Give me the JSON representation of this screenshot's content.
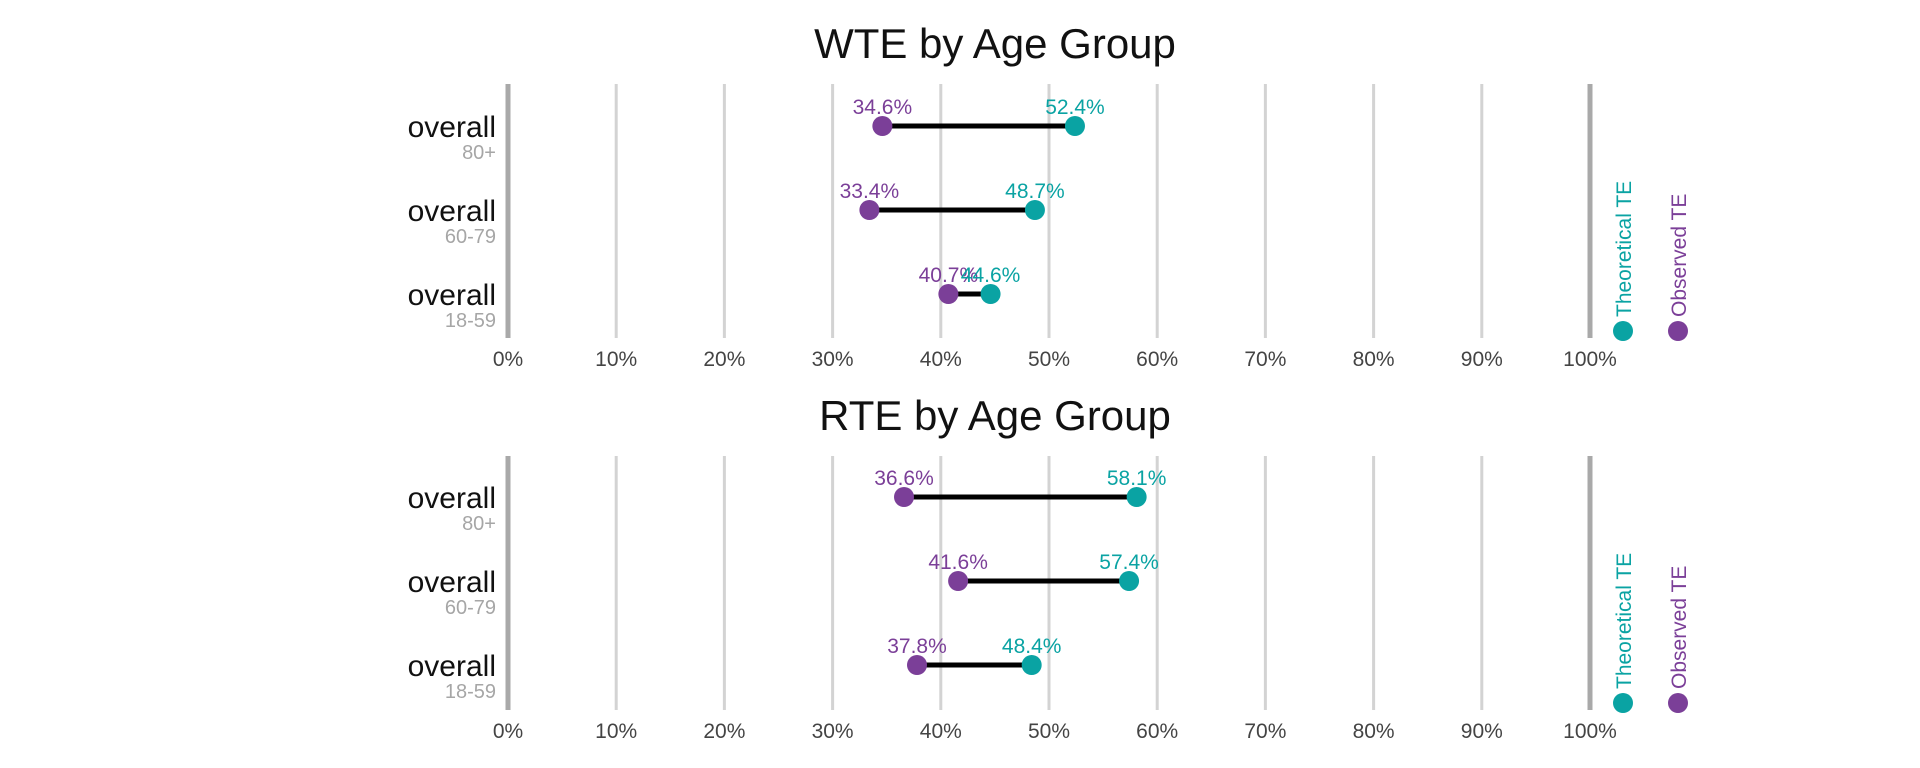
{
  "colors": {
    "observed": "#7B3F98",
    "theoretical": "#0AA3A3",
    "grid": "#d3d3d3",
    "axis": "#a9a9a9",
    "subtitle": "#a6a6a6"
  },
  "chart_data": [
    {
      "type": "dumbbell",
      "title": "WTE by Age Group",
      "x_ticks": [
        "0%",
        "10%",
        "20%",
        "30%",
        "40%",
        "50%",
        "60%",
        "70%",
        "80%",
        "90%",
        "100%"
      ],
      "xlim": [
        0,
        100
      ],
      "grid": true,
      "rows": [
        {
          "category": "overall",
          "sub": "80+",
          "observed": 34.6,
          "observed_label": "34.6%",
          "theoretical": 52.4,
          "theoretical_label": "52.4%"
        },
        {
          "category": "overall",
          "sub": "60-79",
          "observed": 33.4,
          "observed_label": "33.4%",
          "theoretical": 48.7,
          "theoretical_label": "48.7%"
        },
        {
          "category": "overall",
          "sub": "18-59",
          "observed": 40.7,
          "observed_label": "40.7%",
          "theoretical": 44.6,
          "theoretical_label": "44.6%"
        }
      ],
      "legend": {
        "placement": "right",
        "items": [
          "Theoretical TE",
          "Observed TE"
        ]
      }
    },
    {
      "type": "dumbbell",
      "title": "RTE by Age Group",
      "x_ticks": [
        "0%",
        "10%",
        "20%",
        "30%",
        "40%",
        "50%",
        "60%",
        "70%",
        "80%",
        "90%",
        "100%"
      ],
      "xlim": [
        0,
        100
      ],
      "grid": true,
      "rows": [
        {
          "category": "overall",
          "sub": "80+",
          "observed": 36.6,
          "observed_label": "36.6%",
          "theoretical": 58.1,
          "theoretical_label": "58.1%"
        },
        {
          "category": "overall",
          "sub": "60-79",
          "observed": 41.6,
          "observed_label": "41.6%",
          "theoretical": 57.4,
          "theoretical_label": "57.4%"
        },
        {
          "category": "overall",
          "sub": "18-59",
          "observed": 37.8,
          "observed_label": "37.8%",
          "theoretical": 48.4,
          "theoretical_label": "48.4%"
        }
      ],
      "legend": {
        "placement": "right",
        "items": [
          "Theoretical TE",
          "Observed TE"
        ]
      }
    }
  ]
}
